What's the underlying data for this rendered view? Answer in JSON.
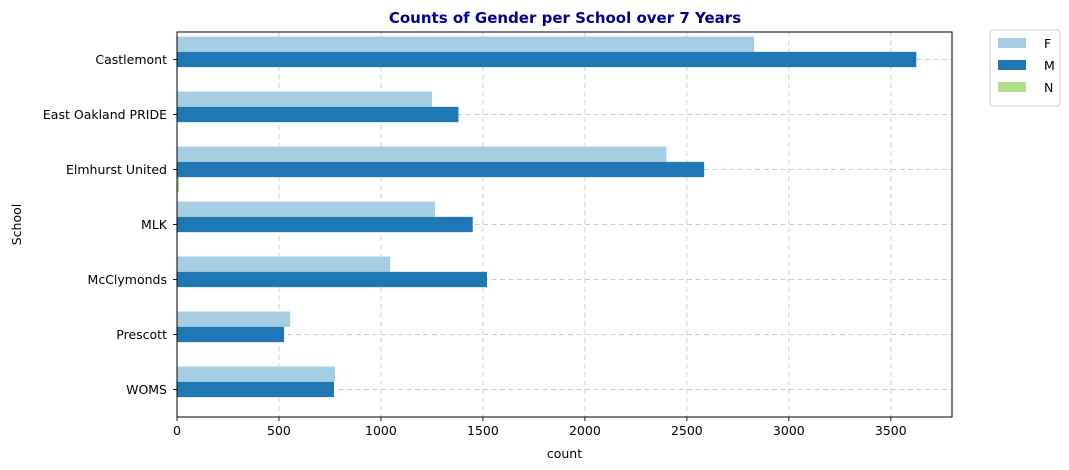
{
  "chart_data": {
    "type": "bar",
    "orientation": "horizontal",
    "title": "Counts of Gender per School over 7 Years",
    "xlabel": "count",
    "ylabel": "School",
    "categories": [
      "Castlemont",
      "East Oakland PRIDE",
      "Elmhurst United",
      "MLK",
      "McClymonds",
      "Prescott",
      "WOMS"
    ],
    "series": [
      {
        "name": "F",
        "color": "#a6cee3",
        "values": [
          2830,
          1250,
          2400,
          1265,
          1045,
          555,
          775
        ]
      },
      {
        "name": "M",
        "color": "#1f78b4",
        "values": [
          3625,
          1380,
          2585,
          1450,
          1520,
          525,
          770
        ]
      },
      {
        "name": "N",
        "color": "#b2df8a",
        "values": [
          0,
          0,
          10,
          0,
          0,
          0,
          0
        ]
      }
    ],
    "xlim": [
      0,
      3800
    ],
    "xticks": [
      0,
      500,
      1000,
      1500,
      2000,
      2500,
      3000,
      3500
    ],
    "grid": true,
    "legend_position": "outside-top-right",
    "title_color": "#00008b"
  }
}
